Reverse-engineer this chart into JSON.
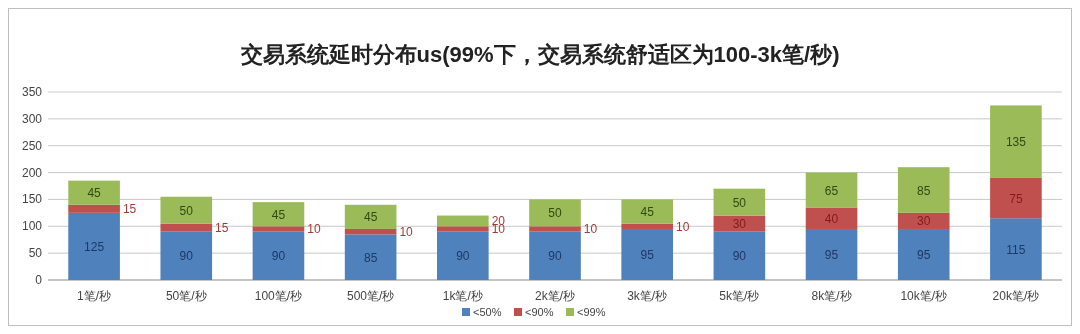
{
  "chart_data": {
    "type": "bar",
    "title": "交易系统延时分布us(99%下，交易系统舒适区为100-3k笔/秒)",
    "categories": [
      "1笔/秒",
      "50笔/秒",
      "100笔/秒",
      "500笔/秒",
      "1k笔/秒",
      "2k笔/秒",
      "3k笔/秒",
      "5k笔/秒",
      "8k笔/秒",
      "10k笔/秒",
      "20k笔/秒"
    ],
    "stacked": true,
    "series": [
      {
        "name": "<50%",
        "color": "#4f81bd",
        "values": [
          125,
          90,
          90,
          85,
          90,
          90,
          95,
          90,
          95,
          95,
          115
        ]
      },
      {
        "name": "<90%",
        "color": "#c0504d",
        "values": [
          15,
          15,
          10,
          10,
          10,
          10,
          10,
          30,
          40,
          30,
          75
        ]
      },
      {
        "name": "<99%",
        "color": "#9bbb59",
        "values": [
          45,
          50,
          45,
          45,
          20,
          50,
          45,
          50,
          65,
          85,
          135
        ]
      }
    ],
    "ylim": [
      0,
      350
    ],
    "yticks": [
      0,
      50,
      100,
      150,
      200,
      250,
      300,
      350
    ],
    "grid": "y",
    "legend": "bottom",
    "data_labels": true
  }
}
